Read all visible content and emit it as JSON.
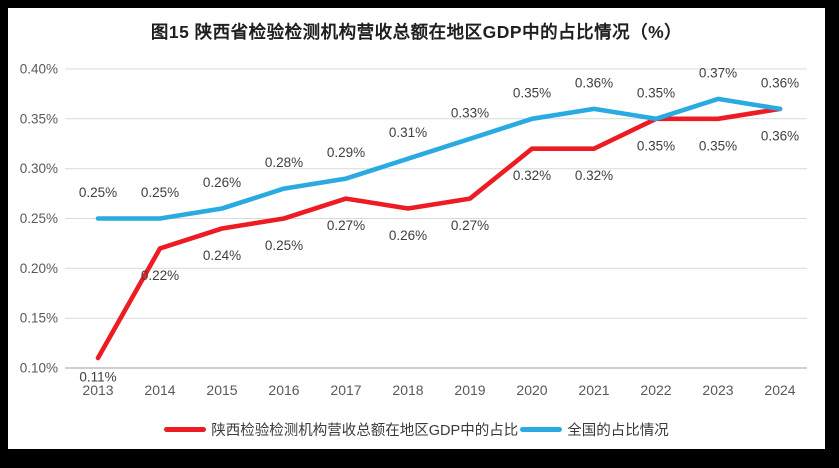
{
  "chart_data": {
    "type": "line",
    "title": "图15 陕西省检验检测机构营收总额在地区GDP中的占比情况（%）",
    "categories": [
      "2013",
      "2014",
      "2015",
      "2016",
      "2017",
      "2018",
      "2019",
      "2020",
      "2021",
      "2022",
      "2023",
      "2024"
    ],
    "series": [
      {
        "name": "陕西检验检测机构营收总额在地区GDP中的占比",
        "color": "#ed1c24",
        "values": [
          0.11,
          0.22,
          0.24,
          0.25,
          0.27,
          0.26,
          0.27,
          0.32,
          0.32,
          0.35,
          0.35,
          0.36
        ],
        "labels": [
          "0.11%",
          "0.22%",
          "0.24%",
          "0.25%",
          "0.27%",
          "0.26%",
          "0.27%",
          "0.32%",
          "0.32%",
          "0.35%",
          "0.35%",
          "0.36%"
        ],
        "label_position": "below"
      },
      {
        "name": "全国的占比情况",
        "color": "#29abe2",
        "values": [
          0.25,
          0.25,
          0.26,
          0.28,
          0.29,
          0.31,
          0.33,
          0.35,
          0.36,
          0.35,
          0.37,
          0.36
        ],
        "labels": [
          "0.25%",
          "0.25%",
          "0.26%",
          "0.28%",
          "0.29%",
          "0.31%",
          "0.33%",
          "0.35%",
          "0.36%",
          "0.35%",
          "0.37%",
          "0.36%"
        ],
        "label_position": "above"
      }
    ],
    "y_axis": {
      "min": 0.1,
      "max": 0.4,
      "step": 0.05,
      "tick_labels": [
        "0.40%",
        "0.35%",
        "0.30%",
        "0.25%",
        "0.20%",
        "0.15%",
        "0.10%"
      ]
    },
    "x_axis": {
      "tick_labels": [
        "2013",
        "2014",
        "2015",
        "2016",
        "2017",
        "2018",
        "2019",
        "2020",
        "2021",
        "2022",
        "2023",
        "2024"
      ]
    },
    "grid": true,
    "legend_position": "bottom",
    "colors": {
      "grid": "#d9d9d9",
      "axis": "#bfbfbf",
      "tick_text": "#595959",
      "data_label_text": "#3f3f3f",
      "title_text": "#1f1f1f",
      "frame": "#000000",
      "background": "#ffffff"
    }
  }
}
